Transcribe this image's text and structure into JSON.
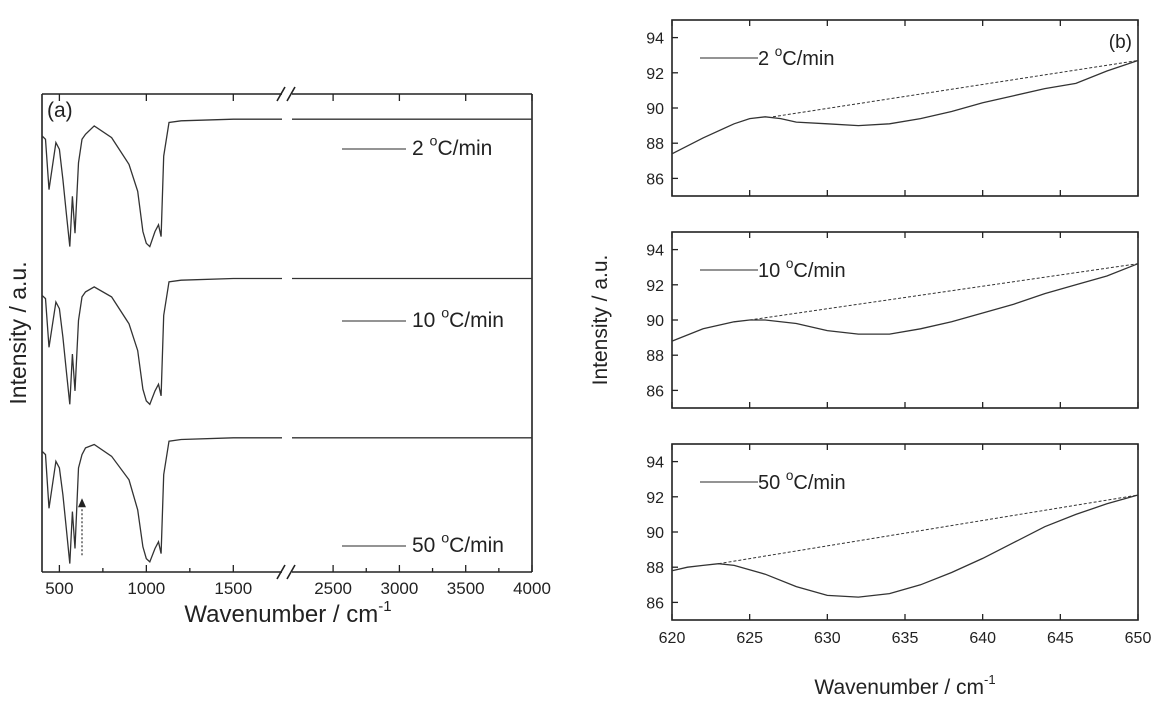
{
  "chart_data": [
    {
      "type": "line",
      "panel_label": "(a)",
      "xlabel": "Wavenumber / cm",
      "xlabel_sup": "-1",
      "ylabel": "Intensity / a.u.",
      "x_break": [
        1780,
        2190
      ],
      "xlim_segments": [
        [
          400,
          1780
        ],
        [
          2190,
          4000
        ]
      ],
      "xticks": [
        500,
        1000,
        1500,
        2500,
        3000,
        3500,
        4000
      ],
      "series": [
        {
          "name": "2 °C/min",
          "name_main": "2 ",
          "name_sup": "o",
          "name_tail": "C/min",
          "x": [
            400,
            420,
            440,
            480,
            500,
            520,
            540,
            560,
            575,
            590,
            610,
            630,
            650,
            700,
            800,
            900,
            950,
            980,
            1000,
            1020,
            1050,
            1070,
            1085,
            1100,
            1130,
            1200,
            1500,
            1780,
            2190,
            2500,
            3000,
            3500,
            4000
          ],
          "y": [
            2.6,
            2.58,
            2.28,
            2.56,
            2.52,
            2.34,
            2.14,
            1.94,
            2.24,
            2.02,
            2.44,
            2.58,
            2.61,
            2.66,
            2.59,
            2.43,
            2.27,
            2.03,
            1.96,
            1.94,
            2.03,
            2.07,
            2.0,
            2.48,
            2.68,
            2.69,
            2.7,
            2.7,
            2.7,
            2.7,
            2.7,
            2.7,
            2.7
          ]
        },
        {
          "name": "10 °C/min",
          "name_main": "10 ",
          "name_sup": "o",
          "name_tail": "C/min",
          "x": [
            400,
            420,
            440,
            480,
            500,
            520,
            540,
            560,
            575,
            590,
            610,
            630,
            650,
            700,
            800,
            900,
            950,
            980,
            1000,
            1020,
            1050,
            1070,
            1085,
            1100,
            1130,
            1200,
            1500,
            1780,
            2190,
            2500,
            3000,
            3500,
            4000
          ],
          "y": [
            1.65,
            1.63,
            1.34,
            1.61,
            1.57,
            1.4,
            1.2,
            1.0,
            1.3,
            1.08,
            1.5,
            1.64,
            1.67,
            1.7,
            1.64,
            1.48,
            1.32,
            1.09,
            1.02,
            1.0,
            1.08,
            1.12,
            1.05,
            1.53,
            1.73,
            1.74,
            1.75,
            1.75,
            1.75,
            1.75,
            1.75,
            1.75,
            1.75
          ]
        },
        {
          "name": "50 °C/min",
          "name_main": "50 ",
          "name_sup": "o",
          "name_tail": "C/min",
          "x": [
            400,
            420,
            440,
            480,
            500,
            520,
            540,
            560,
            575,
            590,
            610,
            630,
            650,
            700,
            800,
            900,
            950,
            980,
            1000,
            1020,
            1050,
            1070,
            1085,
            1100,
            1130,
            1200,
            1500,
            1780,
            2190,
            2500,
            3000,
            3500,
            4000
          ],
          "y": [
            0.72,
            0.7,
            0.38,
            0.66,
            0.62,
            0.46,
            0.26,
            0.05,
            0.36,
            0.14,
            0.62,
            0.7,
            0.74,
            0.76,
            0.69,
            0.55,
            0.37,
            0.15,
            0.08,
            0.06,
            0.14,
            0.18,
            0.11,
            0.58,
            0.78,
            0.79,
            0.8,
            0.8,
            0.8,
            0.8,
            0.8,
            0.8,
            0.8
          ]
        }
      ],
      "arrow": {
        "x": 630,
        "y_from": 0.1,
        "y_to": 0.44,
        "style": "dotted"
      }
    },
    {
      "type": "line",
      "panel_label": "(b)",
      "xlabel": "Wavenumber / cm",
      "xlabel_sup": "-1",
      "ylabel": "Intensity / a.u.",
      "xlim": [
        620,
        650
      ],
      "ylim": [
        85,
        95
      ],
      "xticks": [
        620,
        625,
        630,
        635,
        640,
        645,
        650
      ],
      "yticks": [
        86,
        88,
        90,
        92,
        94
      ],
      "subplots": [
        {
          "name": "2 °C/min",
          "name_main": "2 ",
          "name_sup": "o",
          "name_tail": "C/min",
          "x": [
            620,
            622,
            624,
            625,
            626,
            627,
            628,
            630,
            632,
            634,
            636,
            638,
            640,
            642,
            644,
            646,
            648,
            650
          ],
          "y": [
            87.4,
            88.3,
            89.1,
            89.4,
            89.5,
            89.4,
            89.2,
            89.1,
            89.0,
            89.1,
            89.4,
            89.8,
            90.3,
            90.7,
            91.1,
            91.4,
            92.1,
            92.7
          ],
          "baseline": {
            "x": [
              626.5,
              650
            ],
            "y": [
              89.5,
              92.7
            ]
          }
        },
        {
          "name": "10 °C/min",
          "name_main": "10 ",
          "name_sup": "o",
          "name_tail": "C/min",
          "x": [
            620,
            622,
            624,
            625,
            626,
            628,
            630,
            632,
            634,
            636,
            638,
            640,
            642,
            644,
            646,
            648,
            650
          ],
          "y": [
            88.8,
            89.5,
            89.9,
            90.0,
            90.0,
            89.8,
            89.4,
            89.2,
            89.2,
            89.5,
            89.9,
            90.4,
            90.9,
            91.5,
            92.0,
            92.5,
            93.2
          ],
          "baseline": {
            "x": [
              625.0,
              650
            ],
            "y": [
              90.0,
              93.2
            ]
          }
        },
        {
          "name": "50 °C/min",
          "name_main": "50 ",
          "name_sup": "o",
          "name_tail": "C/min",
          "x": [
            620,
            621,
            622,
            623,
            624,
            626,
            628,
            630,
            632,
            634,
            636,
            638,
            640,
            642,
            644,
            646,
            648,
            650
          ],
          "y": [
            87.8,
            88.0,
            88.1,
            88.2,
            88.1,
            87.6,
            86.9,
            86.4,
            86.3,
            86.5,
            87.0,
            87.7,
            88.5,
            89.4,
            90.3,
            91.0,
            91.6,
            92.1
          ],
          "baseline": {
            "x": [
              623.0,
              650
            ],
            "y": [
              88.2,
              92.1
            ]
          }
        }
      ]
    }
  ]
}
